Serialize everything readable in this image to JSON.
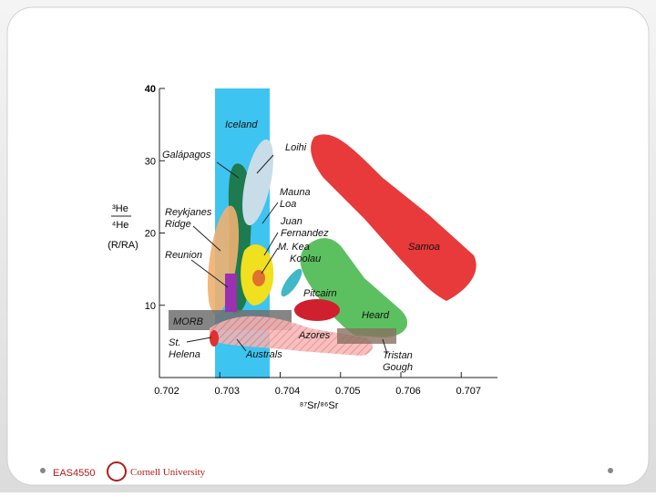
{
  "chart_data": {
    "type": "region",
    "x_label": "⁸⁷Sr/⁸⁶Sr",
    "y_label": [
      "³He",
      "⁴He",
      "(R/RA)"
    ],
    "xlim": [
      0.702,
      0.7076
    ],
    "xticks": [
      0.702,
      0.703,
      0.704,
      0.705,
      0.706,
      0.707
    ],
    "ylim": [
      0,
      40
    ],
    "yticks": [
      10,
      20,
      30,
      40
    ],
    "regions": [
      {
        "label": [
          "Iceland"
        ]
      },
      {
        "label": [
          "Loihi"
        ]
      },
      {
        "label": [
          "Galápagos"
        ]
      },
      {
        "label": [
          "Mauna",
          "Loa"
        ]
      },
      {
        "label": [
          "Reykjanes",
          "Ridge"
        ]
      },
      {
        "label": [
          "Juan",
          "Fernandez"
        ]
      },
      {
        "label": [
          "M. Kea"
        ]
      },
      {
        "label": [
          "Koolau"
        ]
      },
      {
        "label": [
          "Samoa"
        ]
      },
      {
        "label": [
          "Reunion"
        ]
      },
      {
        "label": [
          "Pitcairn"
        ]
      },
      {
        "label": [
          "MORB"
        ]
      },
      {
        "label": [
          "Heard"
        ]
      },
      {
        "label": [
          "Azores"
        ]
      },
      {
        "label": [
          "St.",
          "Helena"
        ]
      },
      {
        "label": [
          "Australs"
        ]
      },
      {
        "label": [
          "Tristan",
          "Gough"
        ]
      }
    ]
  },
  "footer": {
    "course": "EAS4550",
    "institution": "Cornell University"
  }
}
